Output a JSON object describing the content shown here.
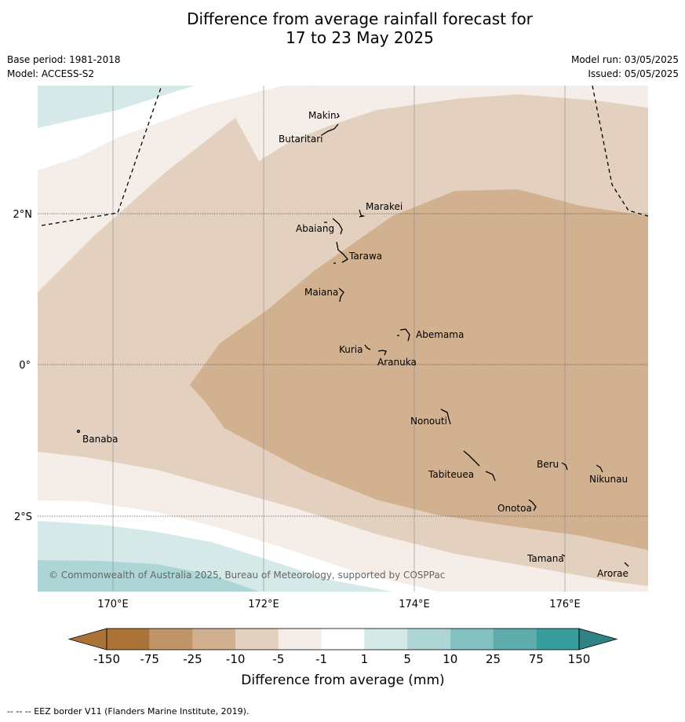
{
  "title": {
    "line1": "Difference from average rainfall forecast for",
    "line2": "17 to 23 May 2025"
  },
  "meta": {
    "base_period": "Base period: 1981-2018",
    "model": "Model: ACCESS-S2",
    "model_run": "Model run: 03/05/2025",
    "issued": "Issued: 05/05/2025"
  },
  "axes": {
    "longitude_labels": [
      "170°E",
      "172°E",
      "174°E",
      "176°E"
    ],
    "latitude_labels": [
      "2°N",
      "0°",
      "2°S"
    ]
  },
  "places": [
    {
      "name": "Makin"
    },
    {
      "name": "Butaritari"
    },
    {
      "name": "Marakei"
    },
    {
      "name": "Abaiang"
    },
    {
      "name": "Tarawa"
    },
    {
      "name": "Maiana"
    },
    {
      "name": "Abemama"
    },
    {
      "name": "Kuria"
    },
    {
      "name": "Aranuka"
    },
    {
      "name": "Banaba"
    },
    {
      "name": "Nonouti"
    },
    {
      "name": "Tabiteuea"
    },
    {
      "name": "Beru"
    },
    {
      "name": "Nikunau"
    },
    {
      "name": "Onotoa"
    },
    {
      "name": "Tamana"
    },
    {
      "name": "Arorae"
    }
  ],
  "credit": "© Commonwealth of Australia 2025, Bureau of Meteorology, supported by COSPPac",
  "colorbar": {
    "title": "Difference from average (mm)",
    "tick_labels": [
      "-150",
      "-75",
      "-25",
      "-10",
      "-5",
      "-1",
      "1",
      "5",
      "10",
      "25",
      "75",
      "150"
    ],
    "colors": [
      "#ac7339",
      "#c19468",
      "#d1b18f",
      "#e3d0be",
      "#f4ede8",
      "#ffffff",
      "#d5e9e9",
      "#aed5d5",
      "#84c2c2",
      "#5eacac",
      "#379c9c",
      "#2e8484"
    ]
  },
  "footer": "--  --  -- EEZ border V11 (Flanders Marine Institute, 2019)."
}
